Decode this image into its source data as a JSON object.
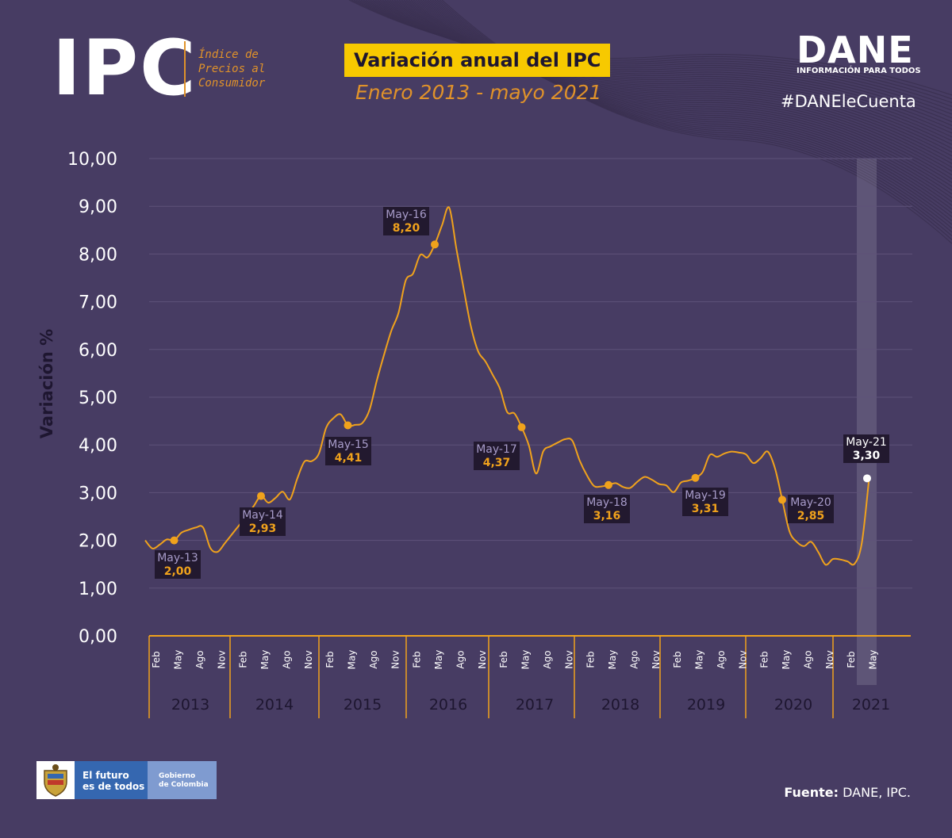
{
  "header": {
    "logo_text": "IPC",
    "logo_subtitle": [
      "Índice de",
      "Precios al",
      "Consumidor"
    ],
    "chart_title": "Variación anual del IPC",
    "chart_subtitle": "Enero 2013 - mayo 2021",
    "brand": "DANE",
    "brand_tagline": "INFORMACIÓN PARA TODOS",
    "hashtag": "#DANEleCuenta"
  },
  "footer": {
    "gov_line1": "El futuro",
    "gov_line2": "es de todos",
    "gov_line3": "Gobierno",
    "gov_line4": "de Colombia",
    "source_label": "Fuente:",
    "source_value": " DANE, IPC."
  },
  "colors": {
    "background": "#473c63",
    "line": "#f0a21c",
    "title_bg": "#f7c900",
    "accent": "#e0922a",
    "label_bg": "#22192f",
    "label_name": "#a79bc9",
    "label_value": "#f0a21c"
  },
  "chart_data": {
    "type": "line",
    "title": "Variación anual del IPC",
    "subtitle": "Enero 2013 - mayo 2021",
    "ylabel": "Variación %",
    "xlabel": "",
    "ylim": [
      0,
      10
    ],
    "yticks": [
      "0,00",
      "1,00",
      "2,00",
      "3,00",
      "4,00",
      "5,00",
      "6,00",
      "7,00",
      "8,00",
      "9,00",
      "10,00"
    ],
    "grid": true,
    "month_ticks": [
      "Feb",
      "May",
      "Ago",
      "Nov"
    ],
    "month_ticks_2021": [
      "Feb",
      "May"
    ],
    "years": [
      "2013",
      "2014",
      "2015",
      "2016",
      "2017",
      "2018",
      "2019",
      "2020",
      "2021"
    ],
    "series": [
      {
        "values": [
          2.0,
          1.83,
          1.91,
          2.02,
          2.0,
          2.16,
          2.22,
          2.27,
          2.27,
          1.84,
          1.76,
          1.94,
          2.13,
          2.32,
          2.51,
          2.72,
          2.93,
          2.79,
          2.89,
          3.02,
          2.86,
          3.29,
          3.65,
          3.66,
          3.82,
          4.36,
          4.56,
          4.64,
          4.41,
          4.42,
          4.46,
          4.74,
          5.35,
          5.89,
          6.39,
          6.77,
          7.45,
          7.59,
          7.98,
          7.93,
          8.2,
          8.6,
          8.97,
          8.1,
          7.27,
          6.48,
          5.96,
          5.75,
          5.47,
          5.18,
          4.69,
          4.66,
          4.37,
          3.99,
          3.4,
          3.87,
          3.97,
          4.05,
          4.12,
          4.09,
          3.68,
          3.37,
          3.14,
          3.13,
          3.16,
          3.2,
          3.12,
          3.1,
          3.23,
          3.33,
          3.27,
          3.18,
          3.15,
          3.01,
          3.21,
          3.25,
          3.31,
          3.43,
          3.79,
          3.75,
          3.82,
          3.86,
          3.84,
          3.8,
          3.62,
          3.72,
          3.86,
          3.51,
          2.85,
          2.19,
          1.97,
          1.88,
          1.97,
          1.75,
          1.49,
          1.61,
          1.6,
          1.56,
          1.51,
          1.95,
          3.3
        ],
        "start": "2013-01",
        "end": "2021-05"
      }
    ],
    "annotations": [
      {
        "name": "May-13",
        "value": "2,00",
        "date": "2013-05"
      },
      {
        "name": "May-14",
        "value": "2,93",
        "date": "2014-05"
      },
      {
        "name": "May-15",
        "value": "4,41",
        "date": "2015-05"
      },
      {
        "name": "May-16",
        "value": "8,20",
        "date": "2016-05"
      },
      {
        "name": "May-17",
        "value": "4,37",
        "date": "2017-05"
      },
      {
        "name": "May-18",
        "value": "3,16",
        "date": "2018-05"
      },
      {
        "name": "May-19",
        "value": "3,31",
        "date": "2019-05"
      },
      {
        "name": "May-20",
        "value": "2,85",
        "date": "2020-05"
      },
      {
        "name": "May-21",
        "value": "3,30",
        "date": "2021-05"
      }
    ]
  }
}
